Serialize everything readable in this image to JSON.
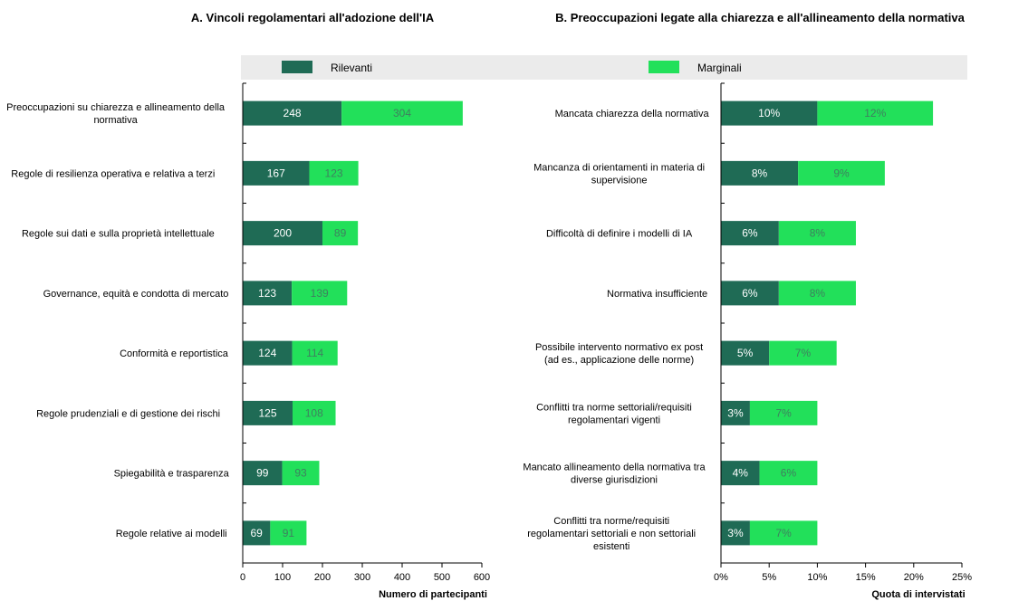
{
  "legend": {
    "items": [
      {
        "label": "Rilevanti",
        "color": "#1f6b55"
      },
      {
        "label": "Marginali",
        "color": "#22e05a"
      }
    ],
    "placement": "top"
  },
  "chart_data": [
    {
      "type": "bar",
      "orientation": "horizontal",
      "stacked": true,
      "title": "A. Vincoli regolamentari all'adozione dell'IA",
      "xlabel": "Numero di partecipanti",
      "ylabel": "",
      "xlim": [
        0,
        600
      ],
      "xticks": [
        0,
        100,
        200,
        300,
        400,
        500,
        600
      ],
      "xtick_labels": [
        "0",
        "100",
        "200",
        "300",
        "400",
        "500",
        "600"
      ],
      "grid": false,
      "categories": [
        "Preoccupazioni su chiarezza e allineamento della normativa",
        "Regole di resilienza operativa e relativa a terzi",
        "Regole sui dati e sulla proprietà intellettuale",
        "Governance, equità e condotta di mercato",
        "Conformità e reportistica",
        "Regole prudenziali e di gestione dei rischi",
        "Spiegabilità e trasparenza",
        "Regole relative ai modelli"
      ],
      "series": [
        {
          "name": "Rilevanti",
          "values": [
            248,
            167,
            200,
            123,
            124,
            125,
            99,
            69
          ],
          "labels": [
            "248",
            "167",
            "200",
            "123",
            "124",
            "125",
            "99",
            "69"
          ]
        },
        {
          "name": "Marginali",
          "values": [
            304,
            123,
            89,
            139,
            114,
            108,
            93,
            91
          ],
          "labels": [
            "304",
            "123",
            "89",
            "139",
            "114",
            "108",
            "93",
            "91"
          ]
        }
      ]
    },
    {
      "type": "bar",
      "orientation": "horizontal",
      "stacked": true,
      "title": "B. Preoccupazioni legate alla chiarezza e all'allineamento della normativa",
      "xlabel": "Quota di intervistati",
      "ylabel": "",
      "xlim": [
        0,
        25
      ],
      "xticks": [
        0,
        5,
        10,
        15,
        20,
        25
      ],
      "xtick_labels": [
        "0%",
        "5%",
        "10%",
        "15%",
        "20%",
        "25%"
      ],
      "grid": false,
      "categories": [
        "Mancata chiarezza della normativa",
        "Mancanza di orientamenti in materia di supervisione",
        "Difficoltà di definire i modelli di IA",
        "Normativa insufficiente",
        "Possibile intervento normativo ex post (ad es., applicazione delle norme)",
        "Conflitti tra norme settoriali/requisiti regolamentari vigenti",
        "Mancato allineamento della normativa tra diverse giurisdizioni",
        "Conflitti tra norme/requisiti regolamentari settoriali e non settoriali esistenti"
      ],
      "series": [
        {
          "name": "Rilevanti",
          "values": [
            10,
            8,
            6,
            6,
            5,
            3,
            4,
            3
          ],
          "labels": [
            "10%",
            "8%",
            "6%",
            "6%",
            "5%",
            "3%",
            "4%",
            "3%"
          ]
        },
        {
          "name": "Marginali",
          "values": [
            12,
            9,
            8,
            8,
            7,
            7,
            6,
            7
          ],
          "labels": [
            "12%",
            "9%",
            "8%",
            "8%",
            "7%",
            "7%",
            "6%",
            "7%"
          ]
        }
      ]
    }
  ]
}
